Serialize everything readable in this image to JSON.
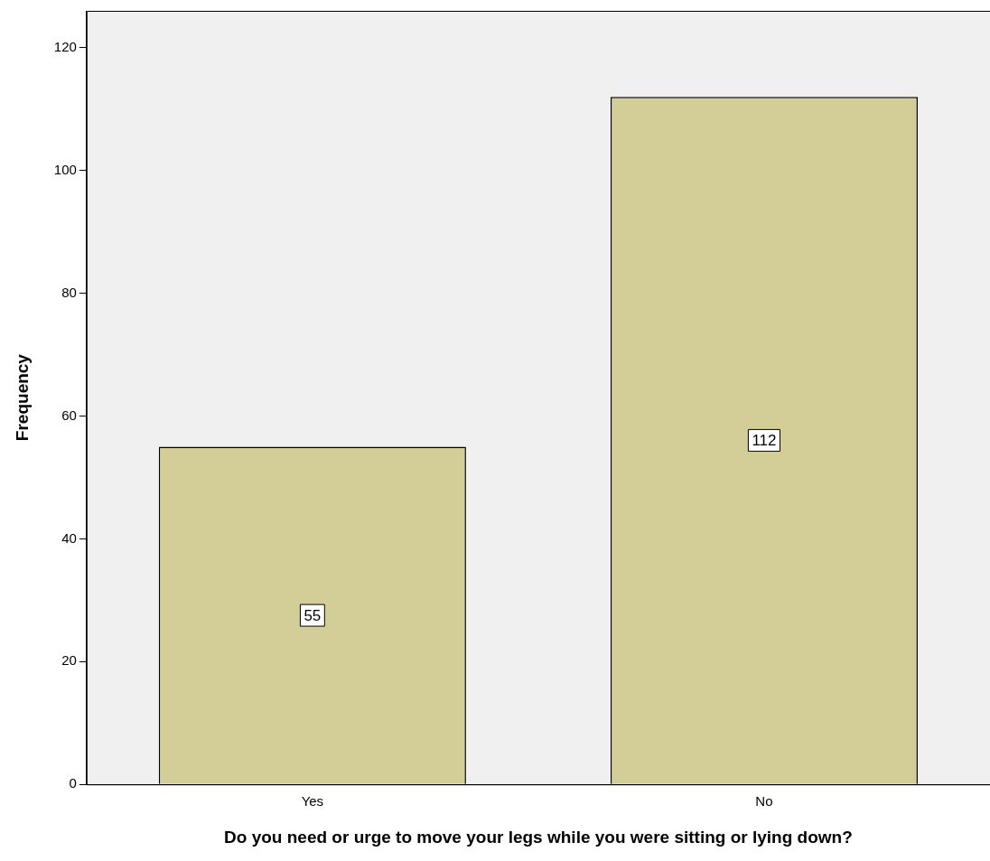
{
  "chart_data": {
    "type": "bar",
    "xlabel": "Do you need or urge to move your legs while you were sitting or lying down?",
    "ylabel": "Frequency",
    "categories": [
      "Yes",
      "No"
    ],
    "values": [
      55,
      112
    ],
    "color": "#d3ce97",
    "ylim": [
      0,
      126
    ],
    "yticks": [
      0,
      20,
      40,
      60,
      80,
      100,
      120
    ],
    "grid": false,
    "legend": false,
    "data_labels": true
  }
}
